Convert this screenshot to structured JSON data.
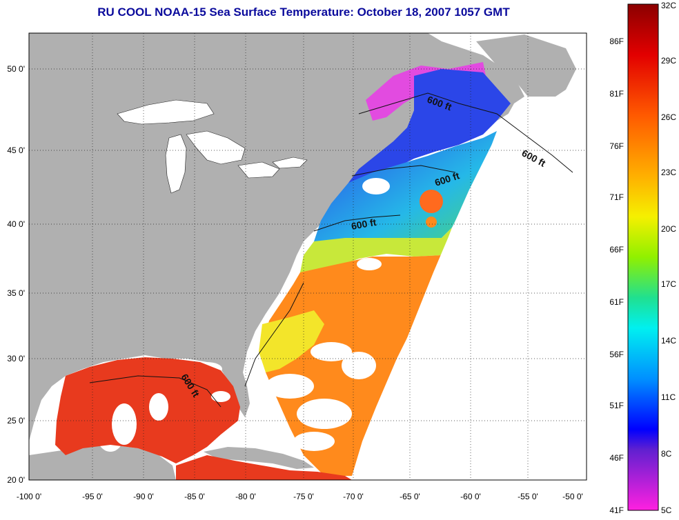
{
  "title": "RU COOL  NOAA-15  Sea Surface Temperature:  October 18, 2007 1057 GMT",
  "map": {
    "lon_labels": [
      "-100 0'",
      "-95 0'",
      "-90 0'",
      "-85 0'",
      "-80 0'",
      "-75 0'",
      "-70 0'",
      "-65 0'",
      "-60 0'",
      "-55 0'",
      "-50 0'"
    ],
    "lat_labels": [
      "50 0'",
      "45 0'",
      "40 0'",
      "35 0'",
      "30 0'",
      "25 0'",
      "20 0'"
    ],
    "isobath_labels": [
      "600 ft",
      "600 ft",
      "600 ft",
      "600 ft",
      "600 ft"
    ],
    "colors": {
      "land": "#b0b0b0",
      "no_data": "#ffffff",
      "warm": "#e83a1e",
      "orange": "#ff8a1c",
      "yellow": "#f3e52a",
      "green": "#4fd86a",
      "cyan": "#25d7e8",
      "blue": "#2b46e8",
      "magenta": "#e24be0"
    }
  },
  "colorbar": {
    "fahrenheit_labels": [
      "86F",
      "81F",
      "76F",
      "71F",
      "66F",
      "61F",
      "56F",
      "51F",
      "46F",
      "41F"
    ],
    "celsius_labels": [
      "32C",
      "29C",
      "26C",
      "23C",
      "20C",
      "17C",
      "14C",
      "11C",
      "8C",
      "5C"
    ]
  }
}
